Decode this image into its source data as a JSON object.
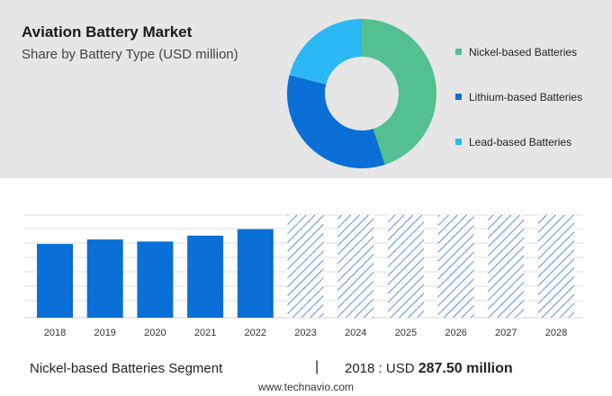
{
  "header": {
    "title": "Aviation Battery Market",
    "subtitle": "Share by Battery Type (USD million)"
  },
  "colors": {
    "nickel": "#52c090",
    "lithium": "#0a6fd6",
    "lead": "#2cb8f5",
    "forecast_hatch": "#2a7ad6",
    "panel_bg": "#e6e6e6",
    "grid": "#dedede"
  },
  "chart_data": [
    {
      "type": "pie",
      "style": "donut",
      "labels": [
        "Nickel-based Batteries",
        "Lithium-based Batteries",
        "Lead-based Batteries"
      ],
      "values": [
        45,
        34,
        21
      ],
      "legend_position": "right"
    },
    {
      "type": "bar",
      "categories": [
        "2018",
        "2019",
        "2020",
        "2021",
        "2022",
        "2023",
        "2024",
        "2025",
        "2026",
        "2027",
        "2028"
      ],
      "series": [
        {
          "values": [
            287.5,
            305,
            297,
            320,
            345,
            400,
            400,
            400,
            400,
            400,
            400
          ],
          "forecast": [
            false,
            false,
            false,
            false,
            false,
            true,
            true,
            true,
            true,
            true,
            true
          ]
        }
      ],
      "ylim": [
        0,
        400
      ],
      "grid": true,
      "xlabel": "",
      "ylabel": ""
    }
  ],
  "footer": {
    "segment": "Nickel-based Batteries Segment",
    "separator": "|",
    "year_label": "2018 : USD ",
    "amount": "287.50 million",
    "url": "www.technavio.com"
  }
}
